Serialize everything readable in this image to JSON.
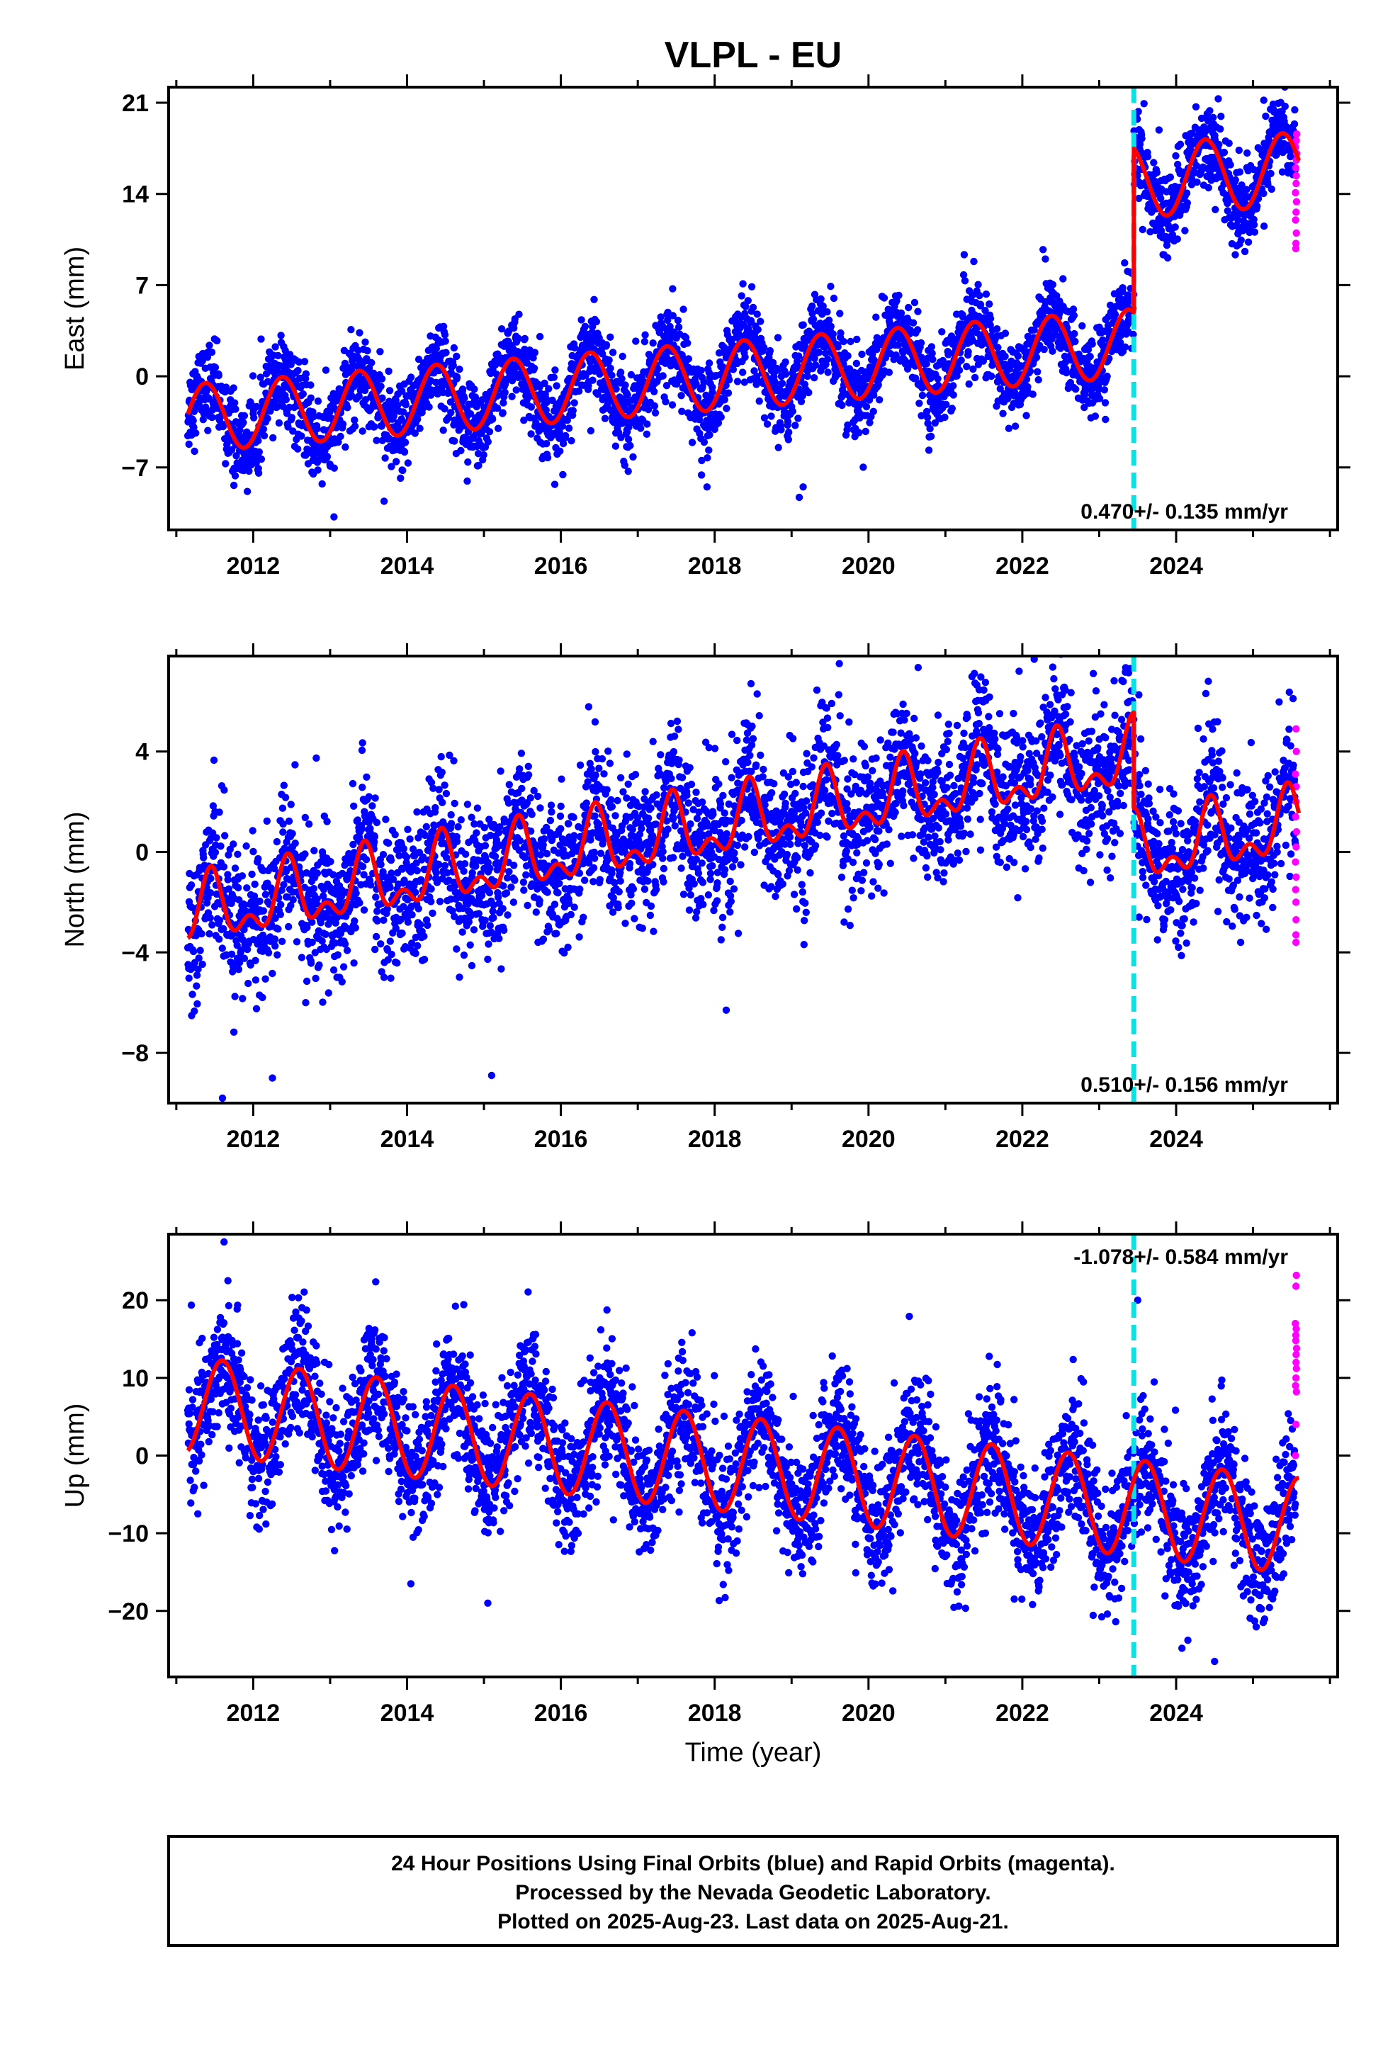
{
  "title": "VLPL - EU",
  "xlabel": "Time (year)",
  "footer": {
    "lines": [
      "24 Hour Positions Using Final Orbits (blue) and Rapid Orbits (magenta).",
      "Processed by the Nevada Geodetic Laboratory.",
      "Plotted on 2025-Aug-23. Last data on 2025-Aug-21."
    ]
  },
  "colors": {
    "final_orbits": "#0000ff",
    "rapid_orbits": "#ff00ff",
    "model": "#ff0000",
    "offset_line": "#00e5e5"
  },
  "chart_data": [
    {
      "type": "scatter",
      "ylabel": "East (mm)",
      "rate_label": "0.470+/- 0.135 mm/yr",
      "rate_position": "bottom-right",
      "xlim": [
        2010.9,
        2026.1
      ],
      "ylim": [
        -11.8,
        22.2
      ],
      "x_ticks": [
        2012,
        2014,
        2016,
        2018,
        2020,
        2022,
        2024
      ],
      "y_ticks": [
        -7,
        0,
        7,
        14,
        21
      ],
      "offset_epoch": 2023.45,
      "final_range": [
        2011.15,
        2025.55
      ],
      "rapid_range": [
        2025.55,
        2025.64
      ],
      "model": {
        "intercept_at_2011": -3.3,
        "rate": 0.47,
        "annual_amp": 2.6,
        "annual_peak_phase": 0.38,
        "semiannual_amp": 0.0,
        "semiannual_peak_phase": 0.0,
        "step": 12.4,
        "post_offset_amp": 2.8,
        "noise": 1.6,
        "outliers": [
          [
            2013.05,
            -10.8
          ],
          [
            2019.1,
            -9.3
          ],
          [
            2019.15,
            -8.5
          ],
          [
            2017.9,
            -8.5
          ],
          [
            2022.3,
            9.0
          ]
        ]
      },
      "rapid_values": [
        9.8,
        10.2,
        11.0,
        12.0,
        12.6,
        13.4,
        14.1,
        14.8,
        15.4,
        16.0,
        16.6,
        17.1,
        17.6,
        18.1,
        18.6
      ]
    },
    {
      "type": "scatter",
      "ylabel": "North (mm)",
      "rate_label": "0.510+/- 0.156 mm/yr",
      "rate_position": "bottom-right",
      "xlim": [
        2010.9,
        2026.1
      ],
      "ylim": [
        -10,
        7.8
      ],
      "x_ticks": [
        2012,
        2014,
        2016,
        2018,
        2020,
        2022,
        2024
      ],
      "y_ticks": [
        -8,
        -4,
        0,
        4
      ],
      "offset_epoch": 2023.45,
      "final_range": [
        2011.15,
        2025.55
      ],
      "rapid_range": [
        2025.55,
        2025.64
      ],
      "model": {
        "intercept_at_2011": -2.6,
        "rate": 0.51,
        "annual_amp": 1.1,
        "annual_peak_phase": 0.45,
        "semiannual_amp": 0.7,
        "semiannual_peak_phase": 0.45,
        "step": -3.8,
        "post_offset_amp": 1.1,
        "noise": 1.45,
        "outliers": [
          [
            2011.6,
            -9.8
          ],
          [
            2012.25,
            -9.0
          ],
          [
            2015.1,
            -8.9
          ],
          [
            2018.15,
            -6.3
          ],
          [
            2023.4,
            7.3
          ]
        ]
      },
      "rapid_values": [
        -3.6,
        -3.3,
        -2.7,
        -2.0,
        -1.5,
        -1.0,
        -0.4,
        0.2,
        0.8,
        1.4,
        2.0,
        2.6,
        3.1,
        4.0,
        4.9
      ]
    },
    {
      "type": "scatter",
      "ylabel": "Up (mm)",
      "rate_label": "-1.078+/- 0.584 mm/yr",
      "rate_position": "top-right",
      "xlim": [
        2010.9,
        2026.1
      ],
      "ylim": [
        -28.5,
        28.5
      ],
      "x_ticks": [
        2012,
        2014,
        2016,
        2018,
        2020,
        2022,
        2024
      ],
      "y_ticks": [
        -20,
        -10,
        0,
        10,
        20
      ],
      "offset_epoch": 2023.45,
      "final_range": [
        2011.15,
        2025.55
      ],
      "rapid_range": [
        2025.55,
        2025.64
      ],
      "model": {
        "intercept_at_2011": 6.7,
        "rate": -1.08,
        "annual_amp": 6.2,
        "annual_peak_phase": 0.6,
        "semiannual_amp": 0.0,
        "semiannual_peak_phase": 0.0,
        "step": 0.0,
        "post_offset_amp": 6.2,
        "noise": 4.2,
        "outliers": [
          [
            2011.62,
            27.5
          ],
          [
            2023.5,
            20.0
          ],
          [
            2014.05,
            -16.5
          ],
          [
            2015.05,
            -19.0
          ],
          [
            2024.5,
            -26.5
          ]
        ]
      },
      "rapid_values": [
        0.0,
        4.0,
        8.2,
        9.0,
        10.0,
        11.2,
        12.0,
        13.0,
        13.8,
        14.8,
        15.5,
        16.3,
        17.0,
        21.8,
        23.2
      ]
    }
  ]
}
